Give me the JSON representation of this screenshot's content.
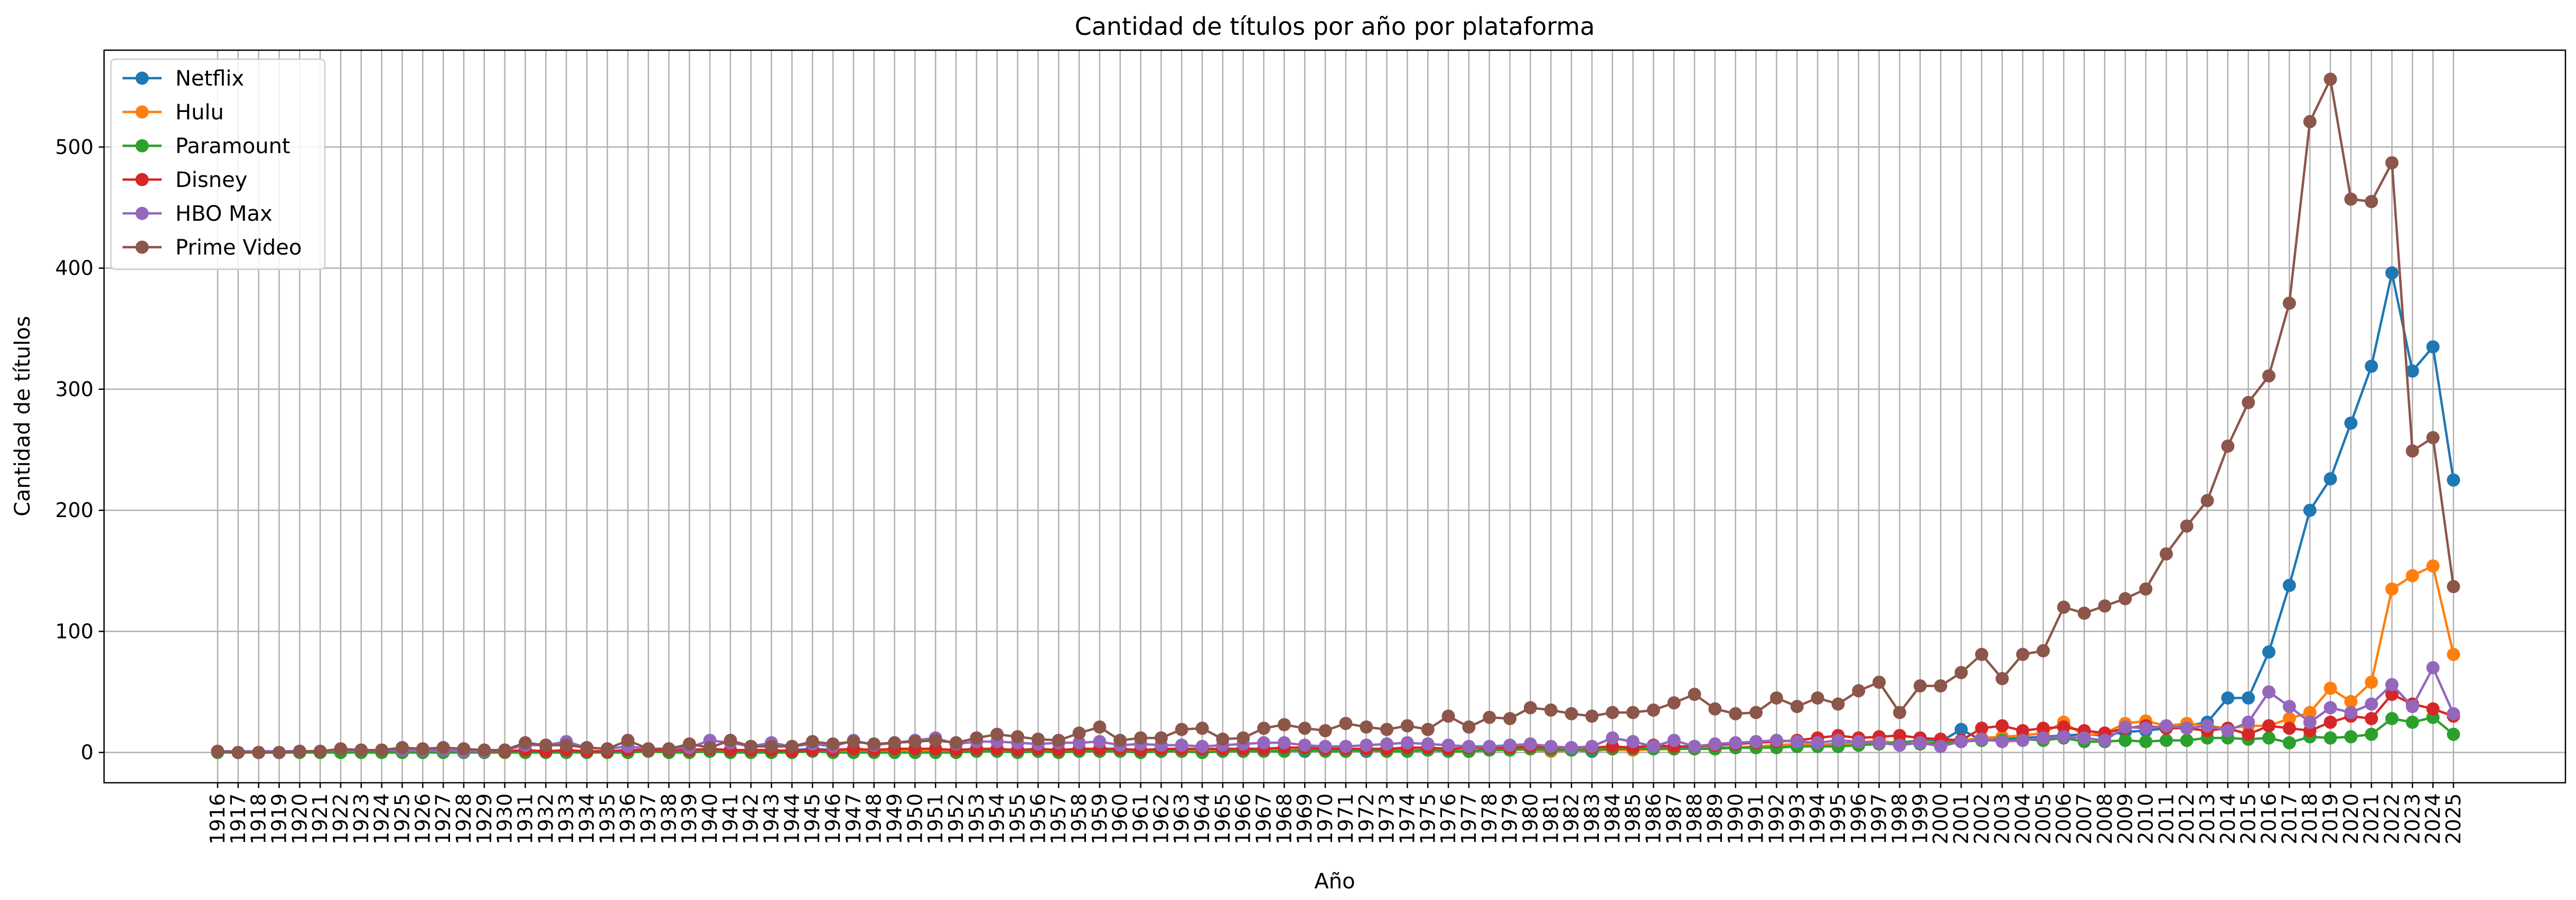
{
  "chart_data": {
    "type": "line",
    "title": "Cantidad de títulos por año por plataforma",
    "xlabel": "Año",
    "ylabel": "Cantidad de títulos",
    "ylim": [
      -25,
      580
    ],
    "yticks": [
      0,
      100,
      200,
      300,
      400,
      500
    ],
    "grid": true,
    "legend_position": "top-left",
    "x": [
      1916,
      1917,
      1918,
      1919,
      1920,
      1921,
      1922,
      1923,
      1924,
      1925,
      1926,
      1927,
      1928,
      1929,
      1930,
      1931,
      1932,
      1933,
      1934,
      1935,
      1936,
      1937,
      1938,
      1939,
      1940,
      1941,
      1942,
      1943,
      1944,
      1945,
      1946,
      1947,
      1948,
      1949,
      1950,
      1951,
      1952,
      1953,
      1954,
      1955,
      1956,
      1957,
      1958,
      1959,
      1960,
      1961,
      1962,
      1963,
      1964,
      1965,
      1966,
      1967,
      1968,
      1969,
      1970,
      1971,
      1972,
      1973,
      1974,
      1975,
      1976,
      1977,
      1978,
      1979,
      1980,
      1981,
      1982,
      1983,
      1984,
      1985,
      1986,
      1987,
      1988,
      1989,
      1990,
      1991,
      1992,
      1993,
      1994,
      1995,
      1996,
      1997,
      1998,
      1999,
      2000,
      2001,
      2002,
      2003,
      2004,
      2005,
      2006,
      2007,
      2008,
      2009,
      2010,
      2011,
      2012,
      2013,
      2014,
      2015,
      2016,
      2017,
      2018,
      2019,
      2020,
      2021,
      2022,
      2023,
      2024,
      2025
    ],
    "series": [
      {
        "name": "Netflix",
        "color": "#1f77b4",
        "x": [
          1942,
          1943,
          1944,
          1945,
          1946,
          1947,
          1954,
          1955,
          1956,
          1958,
          1959,
          1960,
          1961,
          1962,
          1963,
          1964,
          1965,
          1966,
          1967,
          1968,
          1969,
          1970,
          1971,
          1972,
          1973,
          1974,
          1975,
          1976,
          1977,
          1978,
          1979,
          1980,
          1981,
          1982,
          1983,
          1984,
          1985,
          1986,
          1987,
          1988,
          1989,
          1990,
          1991,
          1992,
          1993,
          1994,
          1995,
          1996,
          1997,
          1998,
          1999,
          2000,
          2001,
          2002,
          2003,
          2004,
          2005,
          2006,
          2007,
          2008,
          2009,
          2010,
          2011,
          2012,
          2013,
          2014,
          2015,
          2016,
          2017,
          2018,
          2019,
          2020,
          2021,
          2022,
          2023,
          2024,
          2025
        ],
        "y": [
          2,
          1,
          2,
          3,
          2,
          1,
          2,
          2,
          1,
          2,
          1,
          3,
          1,
          1,
          2,
          1,
          2,
          1,
          3,
          2,
          1,
          2,
          2,
          1,
          2,
          2,
          2,
          2,
          1,
          3,
          2,
          3,
          2,
          2,
          1,
          3,
          2,
          4,
          3,
          4,
          4,
          4,
          4,
          5,
          5,
          6,
          7,
          8,
          9,
          8,
          10,
          9,
          19,
          10,
          11,
          12,
          13,
          14,
          15,
          14,
          17,
          18,
          20,
          22,
          25,
          45,
          45,
          83,
          138,
          200,
          226,
          272,
          319,
          396,
          315,
          335,
          225
        ]
      },
      {
        "name": "Hulu",
        "color": "#ff7f0e",
        "x": [
          1936,
          1940,
          1942,
          1944,
          1947,
          1950,
          1953,
          1955,
          1957,
          1959,
          1961,
          1963,
          1965,
          1967,
          1969,
          1971,
          1973,
          1975,
          1977,
          1979,
          1981,
          1983,
          1985,
          1987,
          1988,
          1989,
          1990,
          1991,
          1992,
          1993,
          1994,
          1995,
          1996,
          1997,
          1998,
          1999,
          2000,
          2001,
          2002,
          2003,
          2004,
          2005,
          2006,
          2007,
          2008,
          2009,
          2010,
          2011,
          2012,
          2013,
          2014,
          2015,
          2016,
          2017,
          2018,
          2019,
          2020,
          2021,
          2022,
          2023,
          2024,
          2025
        ],
        "y": [
          1,
          1,
          1,
          1,
          1,
          2,
          1,
          1,
          1,
          2,
          2,
          1,
          1,
          2,
          2,
          2,
          1,
          2,
          1,
          3,
          1,
          2,
          2,
          3,
          5,
          3,
          4,
          5,
          6,
          7,
          6,
          6,
          8,
          10,
          7,
          9,
          8,
          10,
          12,
          13,
          14,
          16,
          25,
          14,
          16,
          24,
          26,
          22,
          24,
          22,
          20,
          22,
          22,
          28,
          33,
          53,
          42,
          58,
          135,
          146,
          154,
          81
        ]
      },
      {
        "name": "Paramount",
        "color": "#2ca02c",
        "x": [
          1916,
          1917,
          1918,
          1919,
          1920,
          1921,
          1922,
          1923,
          1924,
          1925,
          1926,
          1927,
          1928,
          1929,
          1930,
          1931,
          1932,
          1933,
          1934,
          1935,
          1936,
          1937,
          1938,
          1939,
          1940,
          1941,
          1942,
          1943,
          1944,
          1945,
          1946,
          1947,
          1948,
          1949,
          1950,
          1951,
          1952,
          1953,
          1954,
          1955,
          1956,
          1957,
          1958,
          1959,
          1960,
          1961,
          1962,
          1963,
          1964,
          1965,
          1966,
          1967,
          1968,
          1969,
          1970,
          1971,
          1972,
          1973,
          1974,
          1975,
          1976,
          1977,
          1978,
          1979,
          1980,
          1981,
          1982,
          1983,
          1984,
          1985,
          1986,
          1987,
          1988,
          1989,
          1990,
          1991,
          1992,
          1993,
          1994,
          1995,
          1996,
          1997,
          1998,
          1999,
          2000,
          2001,
          2002,
          2003,
          2004,
          2005,
          2006,
          2007,
          2008,
          2009,
          2010,
          2011,
          2012,
          2013,
          2014,
          2015,
          2016,
          2017,
          2018,
          2019,
          2020,
          2021,
          2022,
          2023,
          2024,
          2025
        ],
        "y": [
          0,
          0,
          0,
          0,
          0,
          0,
          0,
          0,
          0,
          0,
          0,
          0,
          0,
          0,
          0,
          0,
          0,
          0,
          0,
          0,
          0,
          1,
          0,
          0,
          1,
          0,
          0,
          0,
          0,
          1,
          0,
          0,
          0,
          0,
          0,
          0,
          0,
          1,
          1,
          0,
          1,
          0,
          1,
          1,
          1,
          0,
          1,
          1,
          0,
          1,
          1,
          1,
          1,
          2,
          1,
          1,
          2,
          1,
          1,
          2,
          1,
          1,
          2,
          2,
          3,
          2,
          2,
          2,
          3,
          3,
          3,
          3,
          3,
          3,
          4,
          4,
          4,
          5,
          5,
          5,
          6,
          7,
          8,
          7,
          8,
          9,
          10,
          10,
          11,
          10,
          12,
          9,
          9,
          10,
          9,
          10,
          10,
          12,
          12,
          11,
          12,
          8,
          13,
          12,
          13,
          15,
          28,
          25,
          29,
          15
        ]
      },
      {
        "name": "Disney",
        "color": "#d62728",
        "x": [
          1928,
          1929,
          1930,
          1931,
          1932,
          1933,
          1934,
          1935,
          1936,
          1937,
          1938,
          1939,
          1940,
          1941,
          1942,
          1943,
          1944,
          1945,
          1946,
          1947,
          1948,
          1949,
          1950,
          1951,
          1952,
          1953,
          1954,
          1955,
          1956,
          1957,
          1958,
          1959,
          1960,
          1961,
          1962,
          1963,
          1964,
          1965,
          1966,
          1967,
          1968,
          1969,
          1970,
          1971,
          1972,
          1973,
          1974,
          1975,
          1976,
          1977,
          1978,
          1979,
          1980,
          1981,
          1982,
          1983,
          1984,
          1985,
          1986,
          1987,
          1988,
          1989,
          1990,
          1991,
          1992,
          1993,
          1994,
          1995,
          1996,
          1997,
          1998,
          1999,
          2000,
          2001,
          2002,
          2003,
          2004,
          2005,
          2006,
          2007,
          2008,
          2009,
          2010,
          2011,
          2012,
          2013,
          2014,
          2015,
          2016,
          2017,
          2018,
          2019,
          2020,
          2021,
          2022,
          2023,
          2024,
          2025
        ],
        "y": [
          1,
          1,
          1,
          2,
          1,
          2,
          1,
          1,
          2,
          2,
          2,
          2,
          3,
          2,
          2,
          2,
          1,
          2,
          2,
          3,
          2,
          3,
          3,
          3,
          2,
          3,
          3,
          2,
          3,
          2,
          3,
          3,
          3,
          2,
          3,
          3,
          3,
          3,
          3,
          3,
          4,
          4,
          3,
          3,
          3,
          3,
          4,
          4,
          3,
          4,
          4,
          4,
          5,
          4,
          4,
          4,
          5,
          4,
          6,
          5,
          5,
          6,
          7,
          8,
          9,
          10,
          12,
          14,
          12,
          13,
          14,
          12,
          11,
          10,
          20,
          22,
          18,
          20,
          21,
          18,
          16,
          20,
          22,
          20,
          20,
          18,
          20,
          15,
          22,
          20,
          18,
          25,
          30,
          28,
          48,
          40,
          36,
          30
        ]
      },
      {
        "name": "HBO Max",
        "color": "#9467bd",
        "x": [
          1916,
          1920,
          1925,
          1926,
          1927,
          1928,
          1929,
          1930,
          1931,
          1932,
          1933,
          1934,
          1935,
          1936,
          1937,
          1938,
          1939,
          1940,
          1941,
          1942,
          1943,
          1944,
          1945,
          1946,
          1947,
          1948,
          1949,
          1950,
          1951,
          1952,
          1953,
          1954,
          1955,
          1956,
          1957,
          1958,
          1959,
          1960,
          1961,
          1962,
          1963,
          1964,
          1965,
          1966,
          1967,
          1968,
          1969,
          1970,
          1971,
          1972,
          1973,
          1974,
          1975,
          1976,
          1977,
          1978,
          1979,
          1980,
          1981,
          1982,
          1983,
          1984,
          1985,
          1986,
          1987,
          1988,
          1989,
          1990,
          1991,
          1992,
          1993,
          1994,
          1995,
          1996,
          1997,
          1998,
          1999,
          2000,
          2001,
          2002,
          2003,
          2004,
          2005,
          2006,
          2007,
          2008,
          2009,
          2010,
          2011,
          2012,
          2013,
          2014,
          2015,
          2016,
          2017,
          2018,
          2019,
          2020,
          2021,
          2022,
          2023,
          2024,
          2025
        ],
        "y": [
          1,
          1,
          2,
          2,
          2,
          1,
          1,
          2,
          6,
          6,
          9,
          4,
          3,
          5,
          3,
          3,
          4,
          10,
          8,
          5,
          8,
          5,
          7,
          5,
          10,
          6,
          8,
          10,
          12,
          7,
          9,
          9,
          8,
          7,
          8,
          8,
          9,
          6,
          7,
          6,
          6,
          5,
          6,
          7,
          8,
          8,
          6,
          5,
          5,
          6,
          7,
          8,
          7,
          6,
          5,
          5,
          6,
          7,
          5,
          4,
          5,
          12,
          9,
          5,
          10,
          5,
          7,
          8,
          9,
          10,
          9,
          8,
          10,
          9,
          8,
          6,
          8,
          5,
          9,
          11,
          9,
          10,
          12,
          13,
          12,
          10,
          21,
          20,
          22,
          20,
          22,
          18,
          25,
          50,
          38,
          25,
          37,
          33,
          40,
          56,
          38,
          70,
          32
        ]
      },
      {
        "name": "Prime Video",
        "color": "#8c564b",
        "x": [
          1916,
          1917,
          1918,
          1919,
          1920,
          1921,
          1922,
          1923,
          1924,
          1925,
          1926,
          1927,
          1928,
          1929,
          1930,
          1931,
          1932,
          1933,
          1934,
          1935,
          1936,
          1937,
          1938,
          1939,
          1940,
          1941,
          1942,
          1943,
          1944,
          1945,
          1946,
          1947,
          1948,
          1949,
          1950,
          1951,
          1952,
          1953,
          1954,
          1955,
          1956,
          1957,
          1958,
          1959,
          1960,
          1961,
          1962,
          1963,
          1964,
          1965,
          1966,
          1967,
          1968,
          1969,
          1970,
          1971,
          1972,
          1973,
          1974,
          1975,
          1976,
          1977,
          1978,
          1979,
          1980,
          1981,
          1982,
          1983,
          1984,
          1985,
          1986,
          1987,
          1988,
          1989,
          1990,
          1991,
          1992,
          1993,
          1994,
          1995,
          1996,
          1997,
          1998,
          1999,
          2000,
          2001,
          2002,
          2003,
          2004,
          2005,
          2006,
          2007,
          2008,
          2009,
          2010,
          2011,
          2012,
          2013,
          2014,
          2015,
          2016,
          2017,
          2018,
          2019,
          2020,
          2021,
          2022,
          2023,
          2024,
          2025
        ],
        "y": [
          1,
          0,
          0,
          0,
          1,
          1,
          3,
          2,
          2,
          4,
          3,
          4,
          3,
          2,
          2,
          8,
          6,
          6,
          4,
          3,
          10,
          3,
          3,
          7,
          4,
          10,
          5,
          5,
          5,
          9,
          7,
          9,
          7,
          8,
          9,
          10,
          8,
          12,
          15,
          13,
          11,
          10,
          16,
          21,
          10,
          12,
          12,
          19,
          20,
          11,
          12,
          20,
          23,
          20,
          18,
          24,
          21,
          19,
          22,
          19,
          30,
          21,
          29,
          28,
          37,
          35,
          32,
          30,
          33,
          33,
          35,
          41,
          48,
          36,
          32,
          33,
          45,
          38,
          45,
          40,
          51,
          58,
          33,
          55,
          55,
          66,
          81,
          61,
          81,
          84,
          120,
          115,
          121,
          127,
          135,
          164,
          187,
          208,
          253,
          289,
          311,
          371,
          521,
          556,
          457,
          455,
          487,
          249,
          260,
          137
        ]
      }
    ]
  }
}
